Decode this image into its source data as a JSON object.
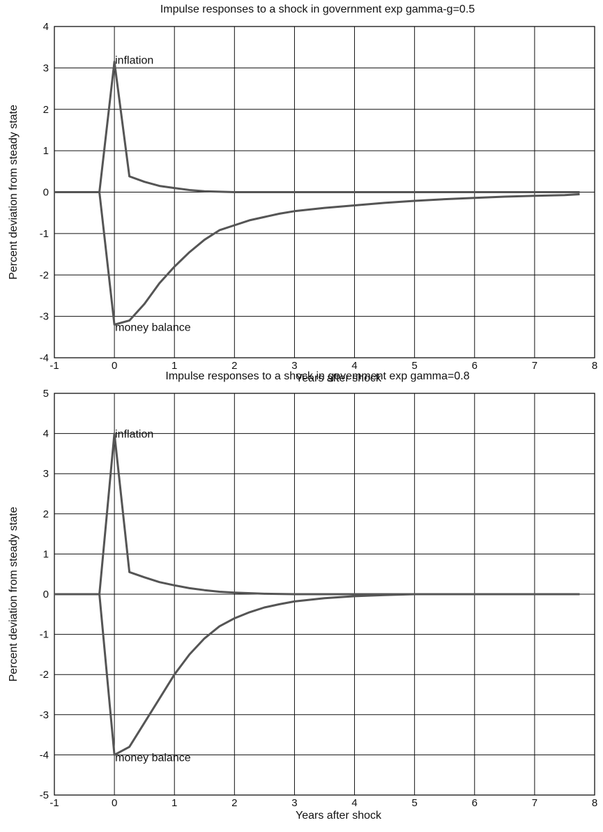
{
  "chart_data": [
    {
      "type": "line",
      "title": "Impulse responses to a shock in government exp gamma-g=0.5",
      "xlabel": "Years after shock",
      "ylabel": "Percent deviation from steady state",
      "xlim": [
        -1,
        8
      ],
      "ylim": [
        -4,
        4
      ],
      "xticks": [
        -1,
        0,
        1,
        2,
        3,
        4,
        5,
        6,
        7,
        8
      ],
      "yticks": [
        -4,
        -3,
        -2,
        -1,
        0,
        1,
        2,
        3,
        4
      ],
      "grid": true,
      "line_color": "#555555",
      "annotations": [
        {
          "text": "inflation",
          "x": 0.0,
          "y": 3.2
        },
        {
          "text": "money balance",
          "x": 0.0,
          "y": -3.25
        }
      ],
      "series": [
        {
          "name": "inflation",
          "x": [
            -1,
            -0.25,
            0,
            0.25,
            0.5,
            0.75,
            1,
            1.25,
            1.5,
            1.75,
            2,
            2.5,
            3,
            4,
            5,
            6,
            7,
            7.75
          ],
          "y": [
            0,
            0,
            3.15,
            0.38,
            0.25,
            0.15,
            0.1,
            0.05,
            0.02,
            0.01,
            0,
            0,
            0,
            0,
            0,
            0,
            0,
            0
          ]
        },
        {
          "name": "money balance",
          "x": [
            -1,
            -0.25,
            0,
            0.25,
            0.5,
            0.75,
            1,
            1.25,
            1.5,
            1.75,
            2,
            2.25,
            2.5,
            2.75,
            3,
            3.5,
            4,
            4.5,
            5,
            5.5,
            6,
            6.5,
            7,
            7.5,
            7.75
          ],
          "y": [
            0,
            0,
            -3.2,
            -3.1,
            -2.7,
            -2.2,
            -1.8,
            -1.45,
            -1.15,
            -0.92,
            -0.8,
            -0.68,
            -0.6,
            -0.52,
            -0.46,
            -0.38,
            -0.32,
            -0.26,
            -0.21,
            -0.17,
            -0.14,
            -0.11,
            -0.09,
            -0.07,
            -0.05
          ]
        }
      ]
    },
    {
      "type": "line",
      "title": "Impulse responses to a shock in govemment exp gamma=0.8",
      "xlabel": "Years after shock",
      "ylabel": "Percent deviation from steady state",
      "xlim": [
        -1,
        8
      ],
      "ylim": [
        -5,
        5
      ],
      "xticks": [
        -1,
        0,
        1,
        2,
        3,
        4,
        5,
        6,
        7,
        8
      ],
      "yticks": [
        -5,
        -4,
        -3,
        -2,
        -1,
        0,
        1,
        2,
        3,
        4,
        5
      ],
      "grid": true,
      "line_color": "#555555",
      "annotations": [
        {
          "text": "inflation",
          "x": 0.0,
          "y": 4.0
        },
        {
          "text": "money balance",
          "x": 0.0,
          "y": -4.05
        }
      ],
      "series": [
        {
          "name": "inflation",
          "x": [
            -1,
            -0.25,
            0,
            0.25,
            0.5,
            0.75,
            1,
            1.25,
            1.5,
            1.75,
            2,
            2.5,
            3,
            4,
            5,
            6,
            7,
            7.75
          ],
          "y": [
            0,
            0,
            4.0,
            0.55,
            0.42,
            0.3,
            0.22,
            0.15,
            0.1,
            0.06,
            0.04,
            0.01,
            0,
            0,
            0,
            0,
            0,
            0
          ]
        },
        {
          "name": "money balance",
          "x": [
            -1,
            -0.25,
            0,
            0.25,
            0.5,
            0.75,
            1,
            1.25,
            1.5,
            1.75,
            2,
            2.25,
            2.5,
            2.75,
            3,
            3.5,
            4,
            4.5,
            5,
            6,
            7,
            7.75
          ],
          "y": [
            0,
            0,
            -4.0,
            -3.8,
            -3.2,
            -2.6,
            -2.0,
            -1.5,
            -1.1,
            -0.8,
            -0.6,
            -0.45,
            -0.33,
            -0.25,
            -0.18,
            -0.1,
            -0.05,
            -0.02,
            0,
            0,
            0,
            0
          ]
        }
      ]
    }
  ]
}
